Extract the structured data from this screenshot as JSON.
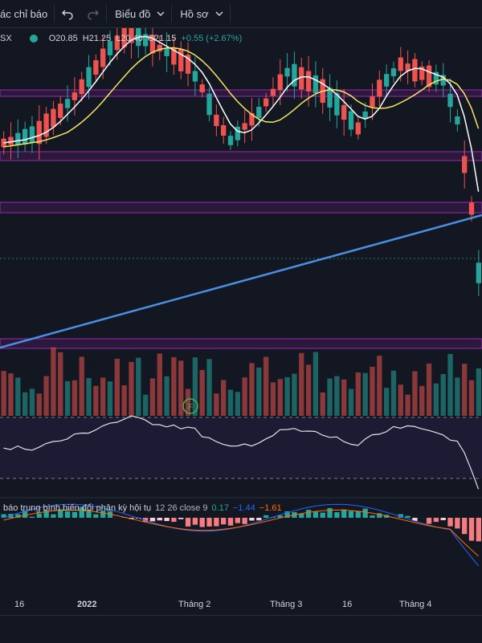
{
  "toolbar": {
    "indicators_label": "ác chỉ báo",
    "chart_type_label": "Biểu đồ",
    "profile_label": "Hồ sơ"
  },
  "symbol": {
    "name": "SX",
    "open": "O20.85",
    "high": "H21.25",
    "low": "L20.40",
    "close": "C21.15",
    "change": "+0.55 (+2.67%)"
  },
  "macd": {
    "label": "báo trung bình biến đổi phân kỳ hội tụ",
    "params": "12 26 close 9",
    "value_hist": "0.17",
    "value_macd": "−1.44",
    "value_signal": "−1.61"
  },
  "time_axis": [
    "16",
    "2022",
    "Tháng 2",
    "Tháng 3",
    "16",
    "Tháng 4"
  ],
  "volume_marker": "F",
  "colors": {
    "background": "#131722",
    "up": "#26a69a",
    "down": "#ef5350",
    "ma_fast": "#ffffff",
    "ma_slow": "#f5e663",
    "trendline": "#4a90e2",
    "zone_border": "#9c27b0",
    "macd_line": "#2962ff",
    "signal_line": "#ff6d00"
  }
}
